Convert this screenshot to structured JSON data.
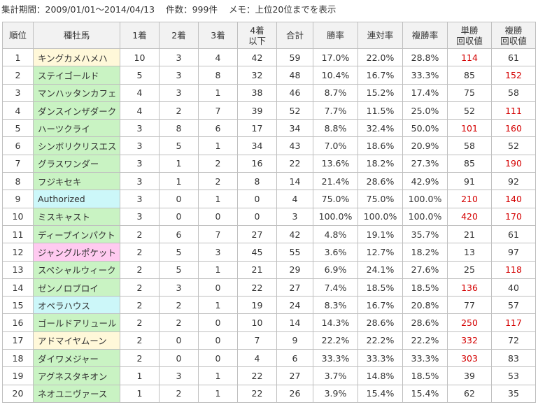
{
  "header": {
    "period": "集計期間：2009/01/01～2014/04/13",
    "count": "件数：999件",
    "memo": "メモ：上位20位までを表示"
  },
  "columns": [
    "順位",
    "種牡馬",
    "1着",
    "2着",
    "3着",
    "4着\n以下",
    "合計",
    "勝率",
    "連対率",
    "複勝率",
    "単勝\n回収値",
    "複勝\n回収値"
  ],
  "rows": [
    {
      "rank": "1",
      "name": "キングカメハメハ",
      "color": "yellow",
      "w1": "10",
      "w2": "3",
      "w3": "4",
      "w4": "42",
      "total": "59",
      "win": "17.0%",
      "rentai": "22.0%",
      "fuku": "28.8%",
      "tan": "114",
      "fk": "61",
      "tan_red": true,
      "fk_red": false
    },
    {
      "rank": "2",
      "name": "ステイゴールド",
      "color": "green",
      "w1": "5",
      "w2": "3",
      "w3": "8",
      "w4": "32",
      "total": "48",
      "win": "10.4%",
      "rentai": "16.7%",
      "fuku": "33.3%",
      "tan": "85",
      "fk": "152",
      "tan_red": false,
      "fk_red": true
    },
    {
      "rank": "3",
      "name": "マンハッタンカフェ",
      "color": "green",
      "w1": "4",
      "w2": "3",
      "w3": "1",
      "w4": "38",
      "total": "46",
      "win": "8.7%",
      "rentai": "15.2%",
      "fuku": "17.4%",
      "tan": "75",
      "fk": "58",
      "tan_red": false,
      "fk_red": false
    },
    {
      "rank": "4",
      "name": "ダンスインザダーク",
      "color": "green",
      "w1": "4",
      "w2": "2",
      "w3": "7",
      "w4": "39",
      "total": "52",
      "win": "7.7%",
      "rentai": "11.5%",
      "fuku": "25.0%",
      "tan": "52",
      "fk": "111",
      "tan_red": false,
      "fk_red": true
    },
    {
      "rank": "5",
      "name": "ハーツクライ",
      "color": "green",
      "w1": "3",
      "w2": "8",
      "w3": "6",
      "w4": "17",
      "total": "34",
      "win": "8.8%",
      "rentai": "32.4%",
      "fuku": "50.0%",
      "tan": "101",
      "fk": "160",
      "tan_red": true,
      "fk_red": true
    },
    {
      "rank": "6",
      "name": "シンボリクリスエス",
      "color": "green",
      "w1": "3",
      "w2": "5",
      "w3": "1",
      "w4": "34",
      "total": "43",
      "win": "7.0%",
      "rentai": "18.6%",
      "fuku": "20.9%",
      "tan": "58",
      "fk": "52",
      "tan_red": false,
      "fk_red": false
    },
    {
      "rank": "7",
      "name": "グラスワンダー",
      "color": "green",
      "w1": "3",
      "w2": "1",
      "w3": "2",
      "w4": "16",
      "total": "22",
      "win": "13.6%",
      "rentai": "18.2%",
      "fuku": "27.3%",
      "tan": "85",
      "fk": "190",
      "tan_red": false,
      "fk_red": true
    },
    {
      "rank": "8",
      "name": "フジキセキ",
      "color": "green",
      "w1": "3",
      "w2": "1",
      "w3": "2",
      "w4": "8",
      "total": "14",
      "win": "21.4%",
      "rentai": "28.6%",
      "fuku": "42.9%",
      "tan": "91",
      "fk": "92",
      "tan_red": false,
      "fk_red": false
    },
    {
      "rank": "9",
      "name": "Authorized",
      "color": "cyan",
      "w1": "3",
      "w2": "0",
      "w3": "1",
      "w4": "0",
      "total": "4",
      "win": "75.0%",
      "rentai": "75.0%",
      "fuku": "100.0%",
      "tan": "210",
      "fk": "140",
      "tan_red": true,
      "fk_red": true
    },
    {
      "rank": "10",
      "name": "ミスキャスト",
      "color": "green",
      "w1": "3",
      "w2": "0",
      "w3": "0",
      "w4": "0",
      "total": "3",
      "win": "100.0%",
      "rentai": "100.0%",
      "fuku": "100.0%",
      "tan": "420",
      "fk": "170",
      "tan_red": true,
      "fk_red": true
    },
    {
      "rank": "11",
      "name": "ディープインパクト",
      "color": "green",
      "w1": "2",
      "w2": "6",
      "w3": "7",
      "w4": "27",
      "total": "42",
      "win": "4.8%",
      "rentai": "19.1%",
      "fuku": "35.7%",
      "tan": "21",
      "fk": "61",
      "tan_red": false,
      "fk_red": false
    },
    {
      "rank": "12",
      "name": "ジャングルポケット",
      "color": "pink",
      "w1": "2",
      "w2": "5",
      "w3": "3",
      "w4": "45",
      "total": "55",
      "win": "3.6%",
      "rentai": "12.7%",
      "fuku": "18.2%",
      "tan": "13",
      "fk": "97",
      "tan_red": false,
      "fk_red": false
    },
    {
      "rank": "13",
      "name": "スペシャルウィーク",
      "color": "green",
      "w1": "2",
      "w2": "5",
      "w3": "1",
      "w4": "21",
      "total": "29",
      "win": "6.9%",
      "rentai": "24.1%",
      "fuku": "27.6%",
      "tan": "25",
      "fk": "118",
      "tan_red": false,
      "fk_red": true
    },
    {
      "rank": "14",
      "name": "ゼンノロブロイ",
      "color": "green",
      "w1": "2",
      "w2": "3",
      "w3": "0",
      "w4": "22",
      "total": "27",
      "win": "7.4%",
      "rentai": "18.5%",
      "fuku": "18.5%",
      "tan": "136",
      "fk": "40",
      "tan_red": true,
      "fk_red": false
    },
    {
      "rank": "15",
      "name": "オペラハウス",
      "color": "cyan",
      "w1": "2",
      "w2": "2",
      "w3": "1",
      "w4": "19",
      "total": "24",
      "win": "8.3%",
      "rentai": "16.7%",
      "fuku": "20.8%",
      "tan": "77",
      "fk": "57",
      "tan_red": false,
      "fk_red": false
    },
    {
      "rank": "16",
      "name": "ゴールドアリュール",
      "color": "green",
      "w1": "2",
      "w2": "2",
      "w3": "0",
      "w4": "10",
      "total": "14",
      "win": "14.3%",
      "rentai": "28.6%",
      "fuku": "28.6%",
      "tan": "250",
      "fk": "117",
      "tan_red": true,
      "fk_red": true
    },
    {
      "rank": "17",
      "name": "アドマイヤムーン",
      "color": "yellow",
      "w1": "2",
      "w2": "0",
      "w3": "0",
      "w4": "7",
      "total": "9",
      "win": "22.2%",
      "rentai": "22.2%",
      "fuku": "22.2%",
      "tan": "332",
      "fk": "72",
      "tan_red": true,
      "fk_red": false
    },
    {
      "rank": "18",
      "name": "ダイワメジャー",
      "color": "green",
      "w1": "2",
      "w2": "0",
      "w3": "0",
      "w4": "4",
      "total": "6",
      "win": "33.3%",
      "rentai": "33.3%",
      "fuku": "33.3%",
      "tan": "303",
      "fk": "83",
      "tan_red": true,
      "fk_red": false
    },
    {
      "rank": "19",
      "name": "アグネスタキオン",
      "color": "green",
      "w1": "1",
      "w2": "3",
      "w3": "1",
      "w4": "22",
      "total": "27",
      "win": "3.7%",
      "rentai": "14.8%",
      "fuku": "18.5%",
      "tan": "39",
      "fk": "53",
      "tan_red": false,
      "fk_red": false
    },
    {
      "rank": "20",
      "name": "ネオユニヴァース",
      "color": "green",
      "w1": "1",
      "w2": "2",
      "w3": "1",
      "w4": "22",
      "total": "26",
      "win": "3.9%",
      "rentai": "15.4%",
      "fuku": "15.4%",
      "tan": "62",
      "fk": "35",
      "tan_red": false,
      "fk_red": false
    }
  ],
  "colors": {
    "green": "#c9f3c3",
    "yellow": "#fff8d9",
    "cyan": "#ccf7f9",
    "pink": "#ffcaf0",
    "highlight_red": "#d40000",
    "header_bg": "#f2f2f2",
    "border": "#bfbfbf"
  }
}
